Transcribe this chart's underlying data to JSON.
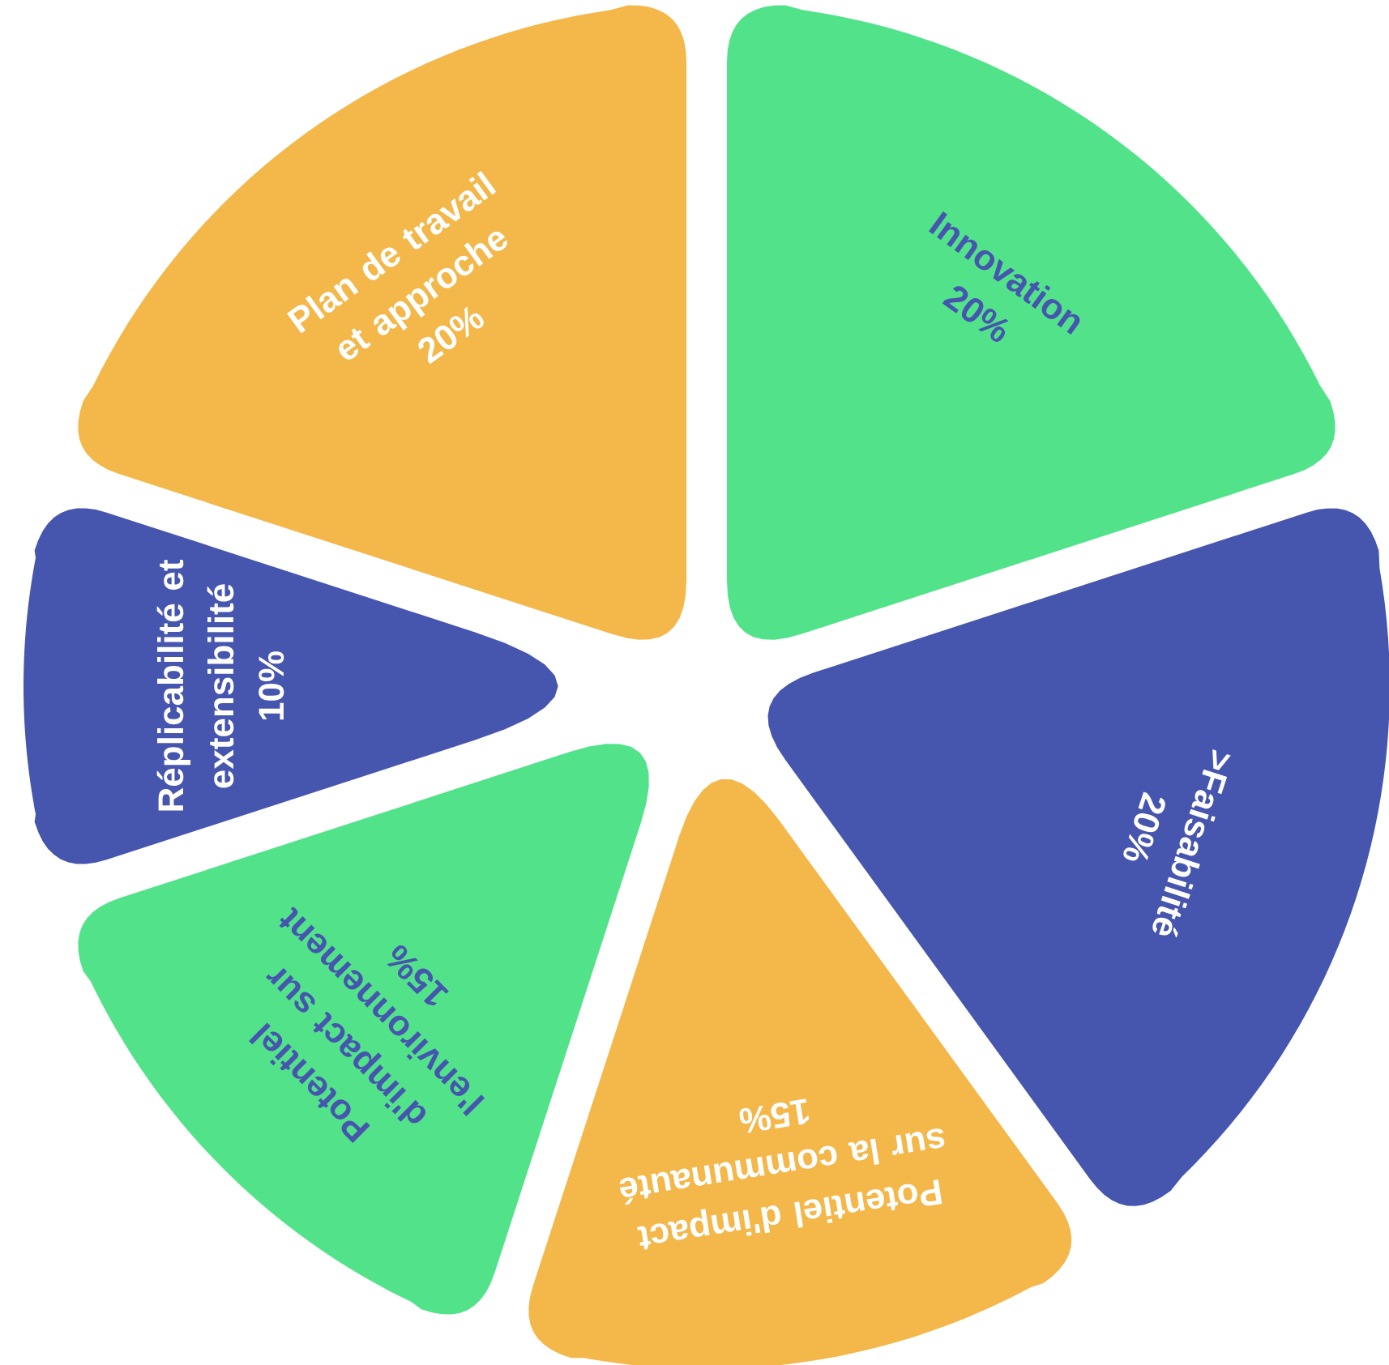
{
  "chart_data": {
    "type": "pie",
    "categories": [
      "Innovation",
      ">Faisabilité",
      "Potentiel d'impact sur la communauté",
      "Potentiel d'impact sur l'environnement",
      "Réplicabilité et extensibilité",
      "Plan de travail et approche"
    ],
    "values": [
      20,
      20,
      15,
      15,
      10,
      20
    ],
    "value_labels": [
      "20%",
      "20%",
      "15%",
      "15%",
      "10%",
      "20%"
    ],
    "colors": [
      "#52e38a",
      "#4656ae",
      "#f3b74a",
      "#52e38a",
      "#4656ae",
      "#f3b74a"
    ]
  }
}
